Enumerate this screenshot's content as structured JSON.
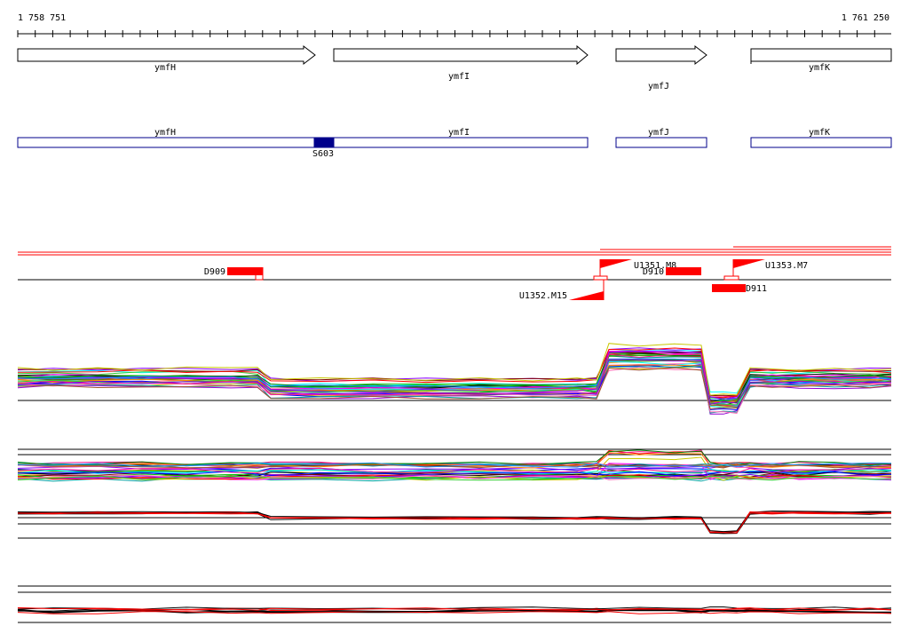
{
  "coordinates": {
    "start": "1 758 751",
    "end": "1 761 250"
  },
  "genes": [
    {
      "name": "ymfH",
      "strand": "+"
    },
    {
      "name": "ymfI",
      "strand": "+"
    },
    {
      "name": "ymfJ",
      "strand": "+"
    },
    {
      "name": "ymfK",
      "strand": "-"
    }
  ],
  "regions": [
    {
      "label": "S603"
    }
  ],
  "features": [
    {
      "label": "D909",
      "kind": "deletion"
    },
    {
      "label": "U1351.M8",
      "kind": "upshift"
    },
    {
      "label": "D910",
      "kind": "deletion"
    },
    {
      "label": "U1352.M15",
      "kind": "upshift"
    },
    {
      "label": "U1353.M7",
      "kind": "upshift"
    },
    {
      "label": "D911",
      "kind": "deletion"
    }
  ],
  "colors": {
    "gene_box": "#000000",
    "region_box": "#00008b",
    "region_fill": "#00008b",
    "feature": "#ff0000",
    "track_line": "#000000"
  }
}
